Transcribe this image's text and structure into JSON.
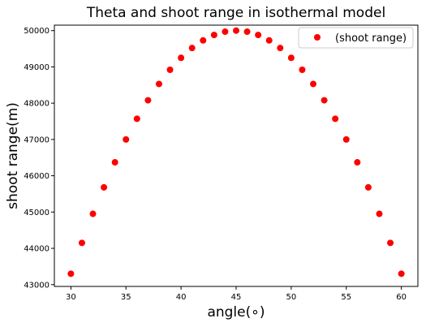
{
  "chart_data": {
    "type": "scatter",
    "title": "Theta and shoot range in isothermal model",
    "xlabel": "angle(∘)",
    "ylabel": "shoot range(m)",
    "xlim": [
      28.5,
      61.5
    ],
    "ylim": [
      42950,
      50150
    ],
    "x_ticks": [
      30,
      35,
      40,
      45,
      50,
      55,
      60
    ],
    "y_ticks": [
      43000,
      44000,
      45000,
      46000,
      47000,
      48000,
      49000,
      50000
    ],
    "grid": false,
    "legend_position": "top-right",
    "marker_color": "#ff0000",
    "series": [
      {
        "name": "(shoot range)",
        "x": [
          30,
          31,
          32,
          33,
          34,
          35,
          36,
          37,
          38,
          39,
          40,
          41,
          42,
          43,
          44,
          45,
          46,
          47,
          48,
          49,
          50,
          51,
          52,
          53,
          54,
          55,
          56,
          57,
          58,
          59,
          60
        ],
        "y": [
          43300,
          44150,
          44950,
          45680,
          46370,
          47000,
          47570,
          48080,
          48530,
          48920,
          49250,
          49520,
          49730,
          49880,
          49970,
          50000,
          49970,
          49880,
          49730,
          49520,
          49250,
          48920,
          48530,
          48080,
          47570,
          47000,
          46370,
          45680,
          44950,
          44150,
          43300
        ]
      }
    ]
  }
}
